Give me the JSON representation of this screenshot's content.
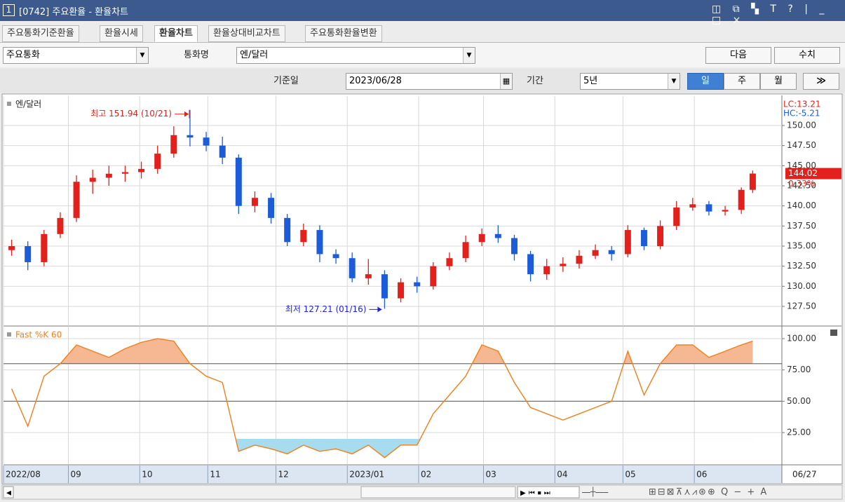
{
  "window": {
    "number": "1",
    "title": "[0742] 주요환율 - 환율차트"
  },
  "tabs": [
    "주요통화기준환율",
    "환율시세",
    "환율차트",
    "환율상대비교차트",
    "주요통화환율변환"
  ],
  "toolbar": {
    "market_select": "주요통화",
    "currency_label": "통화명",
    "currency_select": "엔/달러",
    "next_button": "다음",
    "value_button": "수치",
    "date_label": "기준일",
    "date": "2023/06/28",
    "period_label": "기간",
    "period": "5년",
    "period_buttons": [
      "일",
      "주",
      "월"
    ]
  },
  "chart_data": [
    {
      "type": "candlestick",
      "title": "엔/달러",
      "lc_label": "LC:13.21",
      "hc_label": "HC:-5.21",
      "last_price_label": "144.02",
      "change_label": "0.33%",
      "up_color": "#e3211c",
      "down_color": "#1c5cd8",
      "x": [
        2.5,
        7.5,
        12.5,
        17.5,
        22.5,
        27.5,
        32.5,
        37.5,
        42.5,
        47.5,
        52.5,
        57.5,
        62.5,
        67.5,
        72.5,
        77.5,
        82.5,
        87.5,
        92.5,
        97.5,
        102.5,
        107.5,
        112.5,
        117.5,
        122.5,
        127.5,
        132.5,
        137.5,
        142.5,
        147.5,
        152.5,
        157.5,
        162.5,
        167.5,
        172.5,
        177.5,
        182.5,
        187.5,
        192.5,
        197.5,
        202.5,
        207.5,
        212.5,
        217.5,
        222.5,
        227.5,
        231
      ],
      "open": [
        134.5,
        135.0,
        133.0,
        136.5,
        138.5,
        143.0,
        143.5,
        144.0,
        144.2,
        144.6,
        146.5,
        148.8,
        148.5,
        147.5,
        146.0,
        140.0,
        141.0,
        138.5,
        135.5,
        137.0,
        134.0,
        133.5,
        131.0,
        131.5,
        128.5,
        130.5,
        130.0,
        132.5,
        133.5,
        135.5,
        136.5,
        136.0,
        134.0,
        131.5,
        132.5,
        132.8,
        133.8,
        134.5,
        134.0,
        137.0,
        135.0,
        137.5,
        139.8,
        140.2,
        139.3,
        139.5,
        142.0
      ],
      "high": [
        135.8,
        135.6,
        137.0,
        139.2,
        143.8,
        144.5,
        145.0,
        145.0,
        145.5,
        147.5,
        149.9,
        151.94,
        149.2,
        148.6,
        146.4,
        141.8,
        141.6,
        139.0,
        137.8,
        137.6,
        134.6,
        134.2,
        133.4,
        132.0,
        131.0,
        131.2,
        133.0,
        134.2,
        136.3,
        137.2,
        137.6,
        136.4,
        134.4,
        133.4,
        133.6,
        134.5,
        135.2,
        135.0,
        137.6,
        137.3,
        138.2,
        140.6,
        141.0,
        140.6,
        140.0,
        142.3,
        144.4
      ],
      "low": [
        133.8,
        132.0,
        132.5,
        136.0,
        138.0,
        141.5,
        142.5,
        143.0,
        143.4,
        144.0,
        146.0,
        147.4,
        146.8,
        145.2,
        139.0,
        139.2,
        137.8,
        135.0,
        135.0,
        133.0,
        132.8,
        130.5,
        130.2,
        127.21,
        128.0,
        129.2,
        129.6,
        132.0,
        133.0,
        135.0,
        135.4,
        133.2,
        130.6,
        130.8,
        131.8,
        132.2,
        133.4,
        133.2,
        133.6,
        134.5,
        134.6,
        137.0,
        139.4,
        138.8,
        138.8,
        139.0,
        141.6
      ],
      "close": [
        135.0,
        133.0,
        136.5,
        138.5,
        143.0,
        143.5,
        144.0,
        144.2,
        144.6,
        146.5,
        148.8,
        148.5,
        147.5,
        146.0,
        140.0,
        141.0,
        138.5,
        135.5,
        137.0,
        134.0,
        133.5,
        131.0,
        131.5,
        128.5,
        130.5,
        130.0,
        132.5,
        133.5,
        135.5,
        136.5,
        136.0,
        134.0,
        131.5,
        132.5,
        132.8,
        133.8,
        134.5,
        134.0,
        137.0,
        135.0,
        137.5,
        139.8,
        140.2,
        139.3,
        139.5,
        142.0,
        144.02
      ],
      "annotations": [
        {
          "text": "최고 151.94 (10/21)",
          "color": "#e3211c"
        },
        {
          "text": "최저 127.21 (01/16)",
          "color": "#1f1fe0"
        }
      ],
      "xlim": [
        0,
        240
      ],
      "ylim": [
        125.06,
        153.66
      ],
      "yticks": [
        {
          "value": 127.5,
          "label": "127.50"
        },
        {
          "value": 130,
          "label": "130.00"
        },
        {
          "value": 132.5,
          "label": "132.50"
        },
        {
          "value": 135,
          "label": "135.00"
        },
        {
          "value": 137.5,
          "label": "137.50"
        },
        {
          "value": 140,
          "label": "140.00"
        },
        {
          "value": 142.5,
          "label": "142.50"
        },
        {
          "value": 145,
          "label": "145.00"
        },
        {
          "value": 147.5,
          "label": "147.50"
        },
        {
          "value": 150,
          "label": "150.00"
        }
      ],
      "grid": true
    },
    {
      "type": "line",
      "title": "Fast %K 60",
      "color": "#f07f1c",
      "fill_above": 80,
      "fill_below": 20,
      "fill_above_color": "#f5b893",
      "fill_below_color": "#a7dcee",
      "reference_lines": [
        80,
        50
      ],
      "x": [
        2.5,
        7.5,
        12.5,
        17.5,
        22.5,
        27.5,
        32.5,
        37.5,
        42.5,
        47.5,
        52.5,
        57.5,
        62.5,
        67.5,
        72.5,
        77.5,
        82.5,
        87.5,
        92.5,
        97.5,
        102.5,
        107.5,
        112.5,
        117.5,
        122.5,
        127.5,
        132.5,
        137.5,
        142.5,
        147.5,
        152.5,
        157.5,
        162.5,
        167.5,
        172.5,
        177.5,
        182.5,
        187.5,
        192.5,
        197.5,
        202.5,
        207.5,
        212.5,
        217.5,
        222.5,
        227.5,
        231
      ],
      "values": [
        60,
        30,
        70,
        80,
        95,
        90,
        85,
        92,
        97,
        100,
        98,
        80,
        70,
        65,
        10,
        15,
        12,
        8,
        15,
        10,
        12,
        8,
        15,
        5,
        15,
        15,
        40,
        55,
        70,
        95,
        90,
        65,
        45,
        40,
        35,
        40,
        45,
        50,
        90,
        55,
        80,
        95,
        95,
        85,
        90,
        95,
        98
      ],
      "xlim": [
        0,
        240
      ],
      "ylim": [
        -0.2,
        109.5
      ],
      "yticks": [
        {
          "value": 25,
          "label": "25.00"
        },
        {
          "value": 50,
          "label": "50.00"
        },
        {
          "value": 75,
          "label": "75.00"
        },
        {
          "value": 100,
          "label": "100.00"
        }
      ],
      "xticks": [
        {
          "value": 0,
          "label": "2022/08"
        },
        {
          "value": 20,
          "label": "09"
        },
        {
          "value": 42,
          "label": "10"
        },
        {
          "value": 63,
          "label": "11"
        },
        {
          "value": 84,
          "label": "12"
        },
        {
          "value": 106,
          "label": "2023/01"
        },
        {
          "value": 128,
          "label": "02"
        },
        {
          "value": 148,
          "label": "03"
        },
        {
          "value": 170,
          "label": "04"
        },
        {
          "value": 191,
          "label": "05"
        },
        {
          "value": 213,
          "label": "06"
        }
      ],
      "last_date": "06/27",
      "grid": true
    }
  ]
}
